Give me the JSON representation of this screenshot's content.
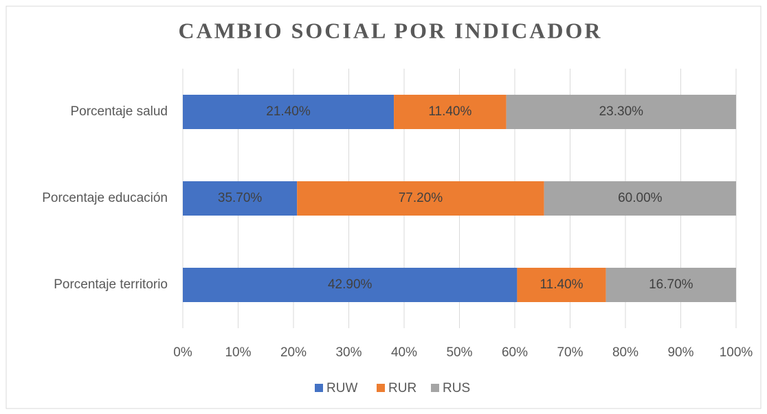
{
  "chart_data": {
    "type": "bar",
    "orientation": "horizontal",
    "stacking": "percent",
    "title": "CAMBIO SOCIAL POR INDICADOR",
    "categories": [
      "Porcentaje salud",
      "Porcentaje educación",
      "Porcentaje territorio"
    ],
    "series": [
      {
        "name": "RUW",
        "color": "#4472c4",
        "values": [
          21.4,
          35.7,
          42.9
        ],
        "value_labels": [
          "21.40%",
          "35.70%",
          "42.90%"
        ]
      },
      {
        "name": "RUR",
        "color": "#ed7d31",
        "values": [
          11.4,
          77.2,
          11.4
        ],
        "value_labels": [
          "11.40%",
          "77.20%",
          "11.40%"
        ]
      },
      {
        "name": "RUS",
        "color": "#a5a5a5",
        "values": [
          23.3,
          60.0,
          16.7
        ],
        "value_labels": [
          "23.30%",
          "60.00%",
          "16.70%"
        ]
      }
    ],
    "xlim": [
      0,
      100
    ],
    "xticks": [
      {
        "value": 0,
        "label": "0%"
      },
      {
        "value": 10,
        "label": "10%"
      },
      {
        "value": 20,
        "label": "20%"
      },
      {
        "value": 30,
        "label": "30%"
      },
      {
        "value": 40,
        "label": "40%"
      },
      {
        "value": 50,
        "label": "50%"
      },
      {
        "value": 60,
        "label": "60%"
      },
      {
        "value": 70,
        "label": "70%"
      },
      {
        "value": 80,
        "label": "80%"
      },
      {
        "value": 90,
        "label": "90%"
      },
      {
        "value": 100,
        "label": "100%"
      }
    ],
    "grid": true,
    "legend": "bottom"
  }
}
